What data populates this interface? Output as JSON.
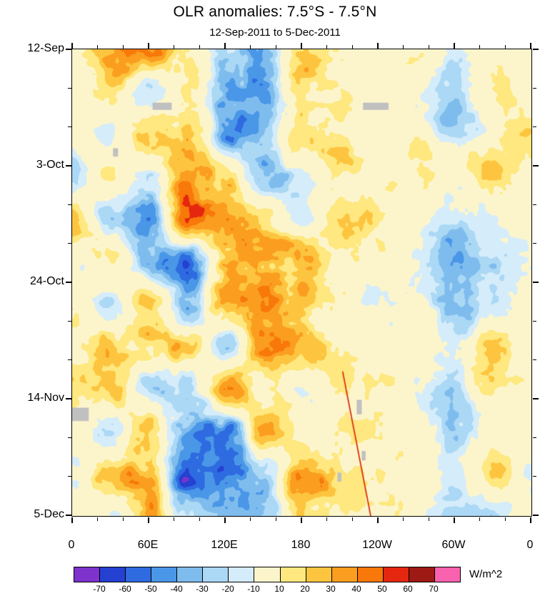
{
  "chart_data": {
    "type": "heatmap",
    "title": "OLR anomalies: 7.5°S - 7.5°N",
    "subtitle": "12-Sep-2011 to 5-Dec-2011",
    "xlabel": "",
    "ylabel": "",
    "x_axis": {
      "range_deg": [
        0,
        360
      ],
      "tick_lons": [
        0,
        60,
        120,
        180,
        240,
        300,
        360
      ],
      "tick_labels": [
        "0",
        "60E",
        "120E",
        "180",
        "120W",
        "60W",
        "0"
      ],
      "minor_step_deg": 20
    },
    "y_axis": {
      "range_days": [
        0,
        84
      ],
      "tick_days": [
        0,
        21,
        42,
        63,
        84
      ],
      "tick_labels": [
        "12-Sep",
        "3-Oct",
        "24-Oct",
        "14-Nov",
        "5-Dec"
      ],
      "minor_step_days": 7
    },
    "colorbar": {
      "levels": [
        -70,
        -60,
        -50,
        -40,
        -30,
        -20,
        -10,
        10,
        20,
        30,
        40,
        50,
        60,
        70
      ],
      "colors": [
        "#7D33CC",
        "#2441D1",
        "#2E6BE0",
        "#4A97E8",
        "#7FBCEE",
        "#AAD8F5",
        "#D5ECFA",
        "#FCF5CC",
        "#FEE87F",
        "#FDC53F",
        "#FB9E1F",
        "#F8780A",
        "#E52710",
        "#9E1A15",
        "#F962AE"
      ],
      "units": "W/m^2",
      "missing_color": "#C0C0C0"
    },
    "grid": {
      "lons": [
        0,
        30,
        60,
        90,
        120,
        150,
        180,
        210,
        240,
        270,
        300,
        330,
        360
      ],
      "days": [
        0,
        7.6,
        15.3,
        22.9,
        30.5,
        38.2,
        45.8,
        53.5,
        61.1,
        68.7,
        76.4,
        84
      ],
      "values": [
        [
          5,
          25,
          35,
          10,
          -30,
          -35,
          25,
          5,
          0,
          5,
          -15,
          10,
          0
        ],
        [
          -10,
          15,
          -20,
          20,
          -40,
          -30,
          30,
          10,
          5,
          0,
          -15,
          5,
          -5
        ],
        [
          10,
          -15,
          25,
          30,
          -35,
          -20,
          25,
          15,
          0,
          5,
          -20,
          -10,
          10
        ],
        [
          -10,
          20,
          -25,
          40,
          25,
          -30,
          -20,
          10,
          5,
          0,
          -15,
          10,
          -5
        ],
        [
          15,
          -20,
          -30,
          50,
          35,
          20,
          -15,
          15,
          5,
          -5,
          -20,
          -15,
          5
        ],
        [
          -15,
          15,
          -35,
          -45,
          30,
          45,
          30,
          0,
          5,
          0,
          -25,
          -20,
          -10
        ],
        [
          10,
          -20,
          20,
          -35,
          40,
          50,
          20,
          10,
          0,
          5,
          -30,
          -15,
          5
        ],
        [
          -10,
          25,
          30,
          20,
          -20,
          40,
          25,
          5,
          -5,
          0,
          -20,
          15,
          -5
        ],
        [
          20,
          30,
          -25,
          -40,
          30,
          20,
          -10,
          10,
          5,
          -5,
          -15,
          20,
          10
        ],
        [
          15,
          -20,
          25,
          -55,
          -45,
          30,
          20,
          5,
          0,
          10,
          -20,
          -10,
          5
        ],
        [
          -10,
          20,
          30,
          -60,
          -50,
          -20,
          30,
          15,
          5,
          0,
          -15,
          10,
          -5
        ],
        [
          5,
          -15,
          20,
          -30,
          -40,
          -25,
          20,
          10,
          0,
          5,
          -10,
          -15,
          5
        ]
      ]
    },
    "noise": {
      "seed": 11,
      "octaves": [
        {
          "scale": 85,
          "amp": 18
        },
        {
          "scale": 38,
          "amp": 13
        },
        {
          "scale": 16,
          "amp": 9
        },
        {
          "scale": 7,
          "amp": 5
        }
      ]
    },
    "missing_data": [
      {
        "lon": [
          63,
          78
        ],
        "day": [
          9.6,
          10.9
        ]
      },
      {
        "lon": [
          228,
          248
        ],
        "day": [
          9.6,
          10.9
        ]
      },
      {
        "lon": [
          32,
          36
        ],
        "day": [
          17.8,
          19.3
        ]
      },
      {
        "lon": [
          0,
          13
        ],
        "day": [
          64.5,
          66.9
        ]
      },
      {
        "lon": [
          223,
          227
        ],
        "day": [
          63.1,
          65.7
        ]
      },
      {
        "lon": [
          227,
          230
        ],
        "day": [
          72.3,
          74.0
        ]
      },
      {
        "lon": [
          208,
          211
        ],
        "day": [
          76.2,
          77.8
        ]
      }
    ],
    "artifact_lines": [
      {
        "from_lon_day": [
          212,
          58
        ],
        "to_lon_day": [
          234,
          84
        ]
      }
    ]
  }
}
